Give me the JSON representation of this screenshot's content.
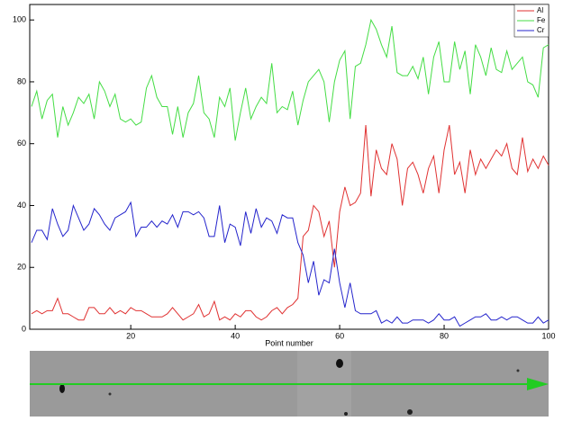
{
  "chart_data": {
    "type": "line",
    "xlabel": "Point number",
    "x": [
      1,
      2,
      3,
      4,
      5,
      6,
      7,
      8,
      9,
      10,
      11,
      12,
      13,
      14,
      15,
      16,
      17,
      18,
      19,
      20,
      21,
      22,
      23,
      24,
      25,
      26,
      27,
      28,
      29,
      30,
      31,
      32,
      33,
      34,
      35,
      36,
      37,
      38,
      39,
      40,
      41,
      42,
      43,
      44,
      45,
      46,
      47,
      48,
      49,
      50,
      51,
      52,
      53,
      54,
      55,
      56,
      57,
      58,
      59,
      60,
      61,
      62,
      63,
      64,
      65,
      66,
      67,
      68,
      69,
      70,
      71,
      72,
      73,
      74,
      75,
      76,
      77,
      78,
      79,
      80,
      81,
      82,
      83,
      84,
      85,
      86,
      87,
      88,
      89,
      90,
      91,
      92,
      93,
      94,
      95,
      96,
      97,
      98,
      99,
      100
    ],
    "series": [
      {
        "name": "Al",
        "color": "#e03232",
        "values": [
          5,
          6,
          5,
          6,
          6,
          10,
          5,
          5,
          4,
          3,
          3,
          7,
          7,
          5,
          5,
          7,
          5,
          6,
          5,
          7,
          6,
          6,
          5,
          4,
          4,
          4,
          5,
          7,
          5,
          3,
          4,
          5,
          8,
          4,
          5,
          9,
          3,
          4,
          3,
          5,
          4,
          6,
          6,
          4,
          3,
          4,
          6,
          7,
          5,
          7,
          8,
          10,
          30,
          32,
          40,
          38,
          30,
          35,
          20,
          38,
          46,
          40,
          41,
          44,
          66,
          43,
          58,
          52,
          50,
          60,
          55,
          40,
          52,
          54,
          50,
          44,
          52,
          56,
          44,
          58,
          66,
          50,
          54,
          44,
          58,
          50,
          55,
          52,
          55,
          58,
          56,
          60,
          52,
          50,
          62,
          51,
          55,
          52,
          56,
          53
        ]
      },
      {
        "name": "Fe",
        "color": "#44dd44",
        "values": [
          72,
          77,
          68,
          74,
          76,
          62,
          72,
          66,
          70,
          75,
          73,
          76,
          68,
          80,
          77,
          72,
          76,
          68,
          67,
          68,
          66,
          67,
          78,
          82,
          75,
          72,
          72,
          63,
          72,
          62,
          70,
          73,
          82,
          70,
          68,
          62,
          75,
          72,
          78,
          61,
          70,
          78,
          68,
          72,
          75,
          73,
          86,
          70,
          72,
          71,
          77,
          66,
          74,
          80,
          82,
          84,
          80,
          67,
          80,
          87,
          90,
          68,
          85,
          86,
          92,
          100,
          97,
          92,
          88,
          98,
          83,
          82,
          82,
          85,
          81,
          88,
          76,
          88,
          93,
          80,
          80,
          93,
          84,
          90,
          76,
          92,
          88,
          82,
          91,
          84,
          83,
          90,
          84,
          86,
          88,
          80,
          79,
          75,
          91,
          92
        ]
      },
      {
        "name": "Cr",
        "color": "#2424cc",
        "values": [
          28,
          32,
          32,
          29,
          39,
          34,
          30,
          32,
          40,
          36,
          32,
          34,
          39,
          37,
          34,
          32,
          36,
          37,
          38,
          41,
          30,
          33,
          33,
          35,
          33,
          35,
          34,
          37,
          33,
          38,
          38,
          37,
          38,
          36,
          30,
          30,
          40,
          28,
          34,
          33,
          27,
          38,
          31,
          39,
          33,
          36,
          35,
          31,
          37,
          36,
          36,
          28,
          24,
          15,
          22,
          11,
          16,
          15,
          26,
          15,
          7,
          15,
          6,
          5,
          5,
          5,
          6,
          2,
          3,
          2,
          4,
          2,
          2,
          3,
          3,
          3,
          2,
          3,
          5,
          3,
          3,
          4,
          1,
          2,
          3,
          4,
          4,
          5,
          3,
          3,
          4,
          3,
          4,
          4,
          3,
          2,
          2,
          4,
          2,
          3
        ]
      }
    ],
    "xlim": [
      1,
      100
    ],
    "xticks": [
      20,
      40,
      60,
      80,
      100
    ],
    "ylim": [
      0,
      105
    ],
    "yticks": [
      0,
      20,
      40,
      60,
      80,
      100
    ],
    "legend": "top-right"
  }
}
